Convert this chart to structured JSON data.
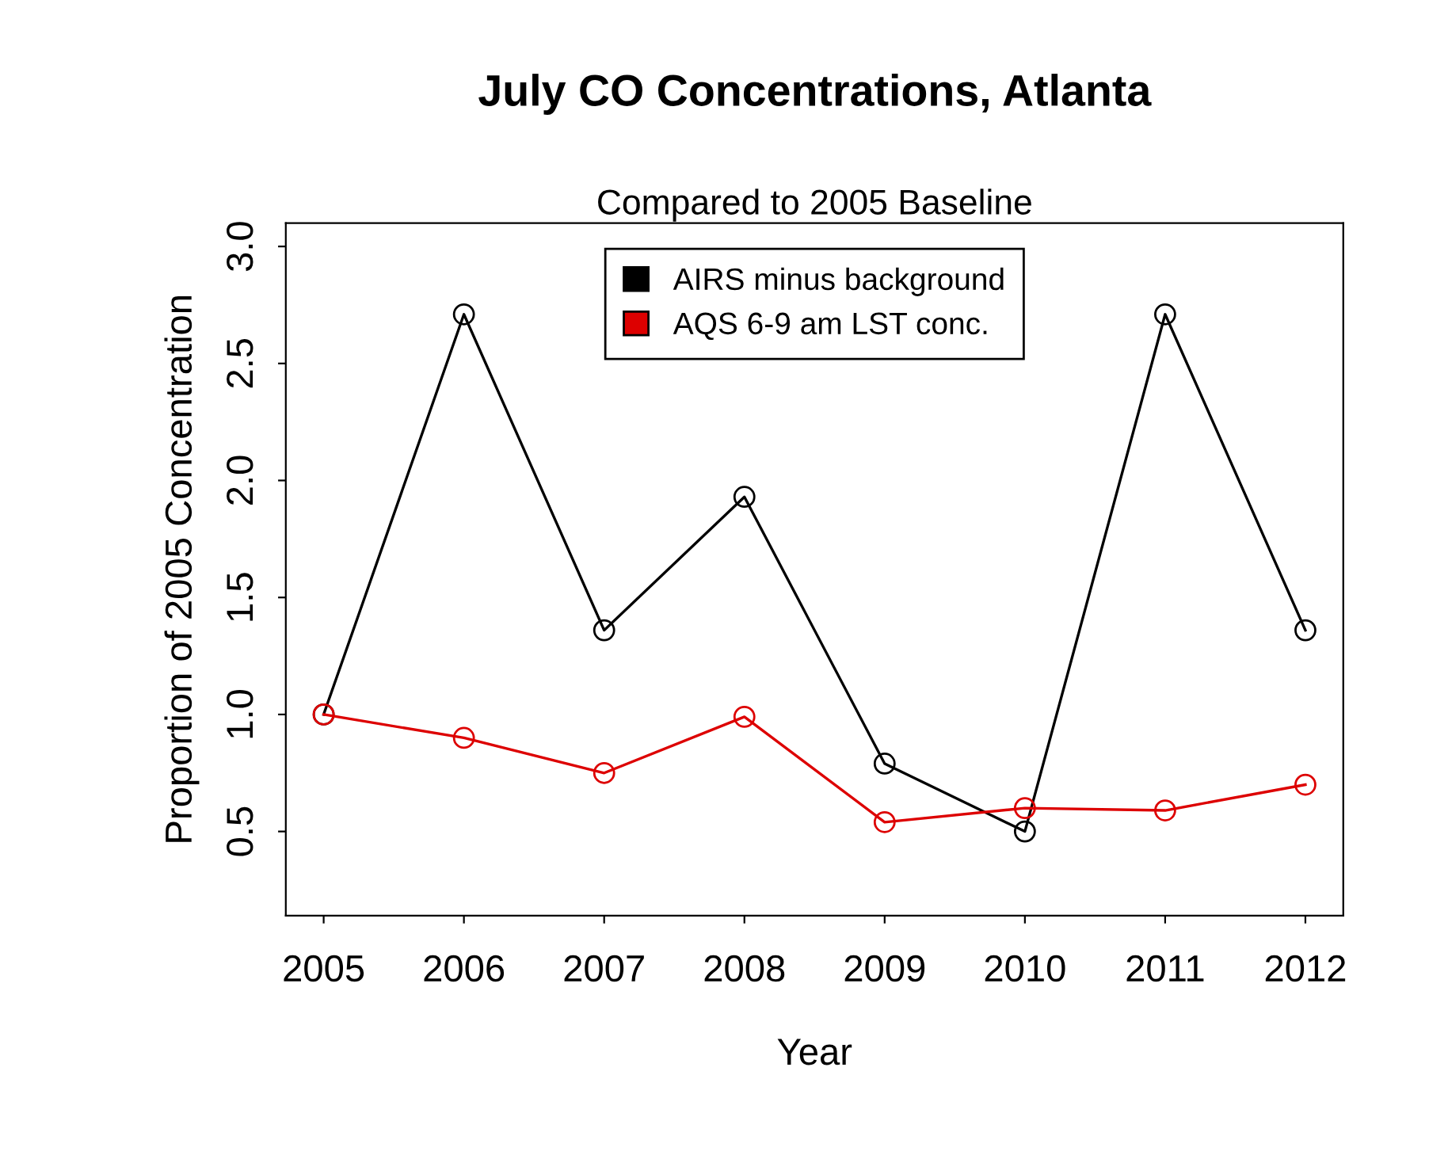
{
  "chart_data": {
    "type": "line",
    "title": "July CO Concentrations, Atlanta",
    "subtitle": "Compared to 2005 Baseline",
    "xlabel": "Year",
    "ylabel": "Proportion of 2005 Concentration",
    "x": [
      2005,
      2006,
      2007,
      2008,
      2009,
      2010,
      2011,
      2012
    ],
    "series": [
      {
        "name": "AIRS minus background",
        "color": "#000000",
        "values": [
          1.0,
          2.71,
          1.36,
          1.93,
          0.79,
          0.5,
          2.71,
          1.36
        ]
      },
      {
        "name": "AQS 6-9 am LST conc.",
        "color": "#dd0000",
        "values": [
          1.0,
          0.9,
          0.75,
          0.99,
          0.54,
          0.6,
          0.59,
          0.7
        ]
      }
    ],
    "xlim": [
      2004.73,
      2012.27
    ],
    "xticks": [
      2005,
      2006,
      2007,
      2008,
      2009,
      2010,
      2011,
      2012
    ],
    "ylim": [
      0.14,
      3.1
    ],
    "yticks": [
      0.5,
      {
        "value": 1,
        "label": "1.0"
      },
      1.5,
      {
        "value": 2,
        "label": "2.0"
      },
      2.5,
      {
        "value": 3,
        "label": "3.0"
      }
    ],
    "marker": "circle",
    "line_style": "solid",
    "grid": false,
    "legend": "top"
  }
}
